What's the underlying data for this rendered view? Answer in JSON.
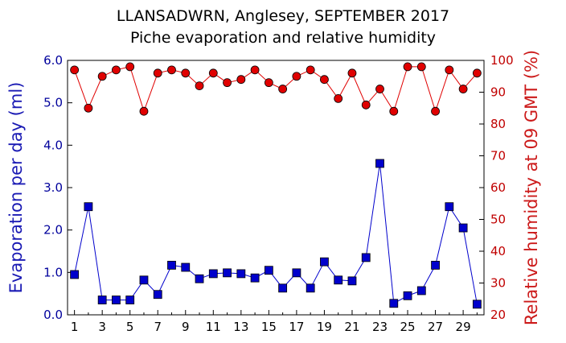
{
  "chart_data": {
    "type": "line",
    "title": "LLANSADWRN, Anglesey, SEPTEMBER 2017",
    "subtitle": "Piche evaporation and relative humidity",
    "x": [
      1,
      2,
      3,
      4,
      5,
      6,
      7,
      8,
      9,
      10,
      11,
      12,
      13,
      14,
      15,
      16,
      17,
      18,
      19,
      20,
      21,
      22,
      23,
      24,
      25,
      26,
      27,
      28,
      29,
      30
    ],
    "x_ticks": [
      "1",
      "3",
      "5",
      "7",
      "9",
      "11",
      "13",
      "15",
      "17",
      "19",
      "21",
      "23",
      "25",
      "27",
      "29"
    ],
    "xlim": [
      0.5,
      30.5
    ],
    "y_left": {
      "label": "Evaporation per day (ml)",
      "ylim": [
        0,
        6
      ],
      "ticks": [
        "0.0",
        "1.0",
        "2.0",
        "3.0",
        "4.0",
        "5.0",
        "6.0"
      ]
    },
    "y_right": {
      "label": "Relative humidity at 09 GMT (%)",
      "ylim": [
        20,
        100
      ],
      "ticks": [
        "20",
        "30",
        "40",
        "50",
        "60",
        "70",
        "80",
        "90",
        "100"
      ]
    },
    "series": [
      {
        "axis": "left",
        "marker": "square",
        "color": "#0000cc",
        "values": [
          0.95,
          2.55,
          0.35,
          0.35,
          0.35,
          0.82,
          0.48,
          1.17,
          1.12,
          0.85,
          0.97,
          0.99,
          0.97,
          0.87,
          1.05,
          0.63,
          0.99,
          0.63,
          1.25,
          0.82,
          0.8,
          1.35,
          3.57,
          0.27,
          0.45,
          0.57,
          1.17,
          2.55,
          2.05,
          0.25
        ]
      },
      {
        "axis": "right",
        "marker": "circle",
        "color": "#e00000",
        "values": [
          97,
          85,
          95,
          97,
          98,
          84,
          96,
          97,
          96,
          92,
          96,
          93,
          94,
          97,
          93,
          91,
          95,
          97,
          94,
          88,
          96,
          86,
          91,
          84,
          98,
          98,
          84,
          97,
          91,
          96
        ]
      }
    ]
  }
}
